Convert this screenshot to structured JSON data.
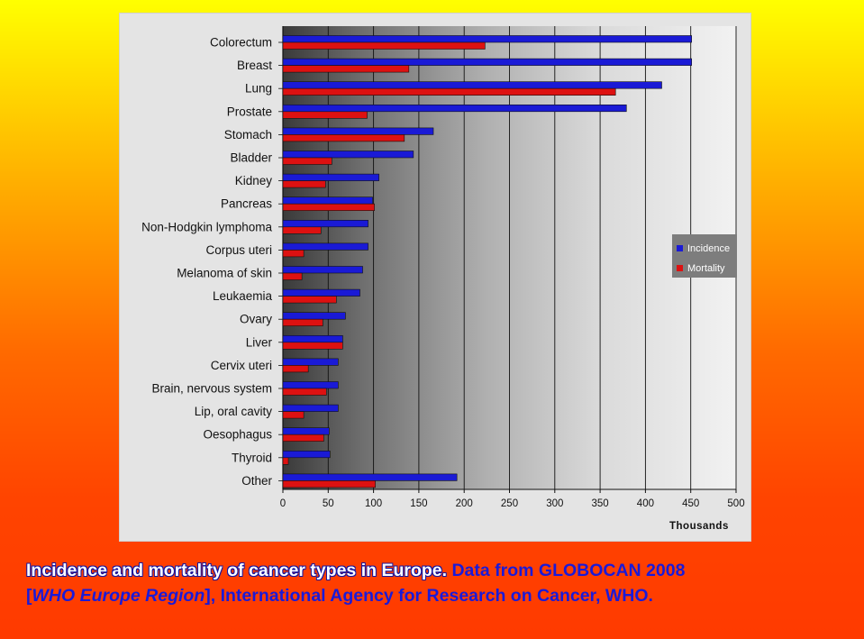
{
  "chart_data": {
    "type": "bar",
    "orientation": "horizontal",
    "categories": [
      "Colorectum",
      "Breast",
      "Lung",
      "Prostate",
      "Stomach",
      "Bladder",
      "Kidney",
      "Pancreas",
      "Non-Hodgkin lymphoma",
      "Corpus uteri",
      "Melanoma of skin",
      "Leukaemia",
      "Ovary",
      "Liver",
      "Cervix uteri",
      "Brain, nervous system",
      "Lip, oral cavity",
      "Oesophagus",
      "Thyroid",
      "Other"
    ],
    "series": [
      {
        "name": "Incidence",
        "color": "#1a1ad6",
        "values": [
          451,
          451,
          418,
          379,
          166,
          144,
          106,
          99,
          94,
          94,
          88,
          85,
          69,
          66,
          61,
          61,
          61,
          51,
          52,
          192
        ]
      },
      {
        "name": "Mortality",
        "color": "#dd1111",
        "values": [
          223,
          139,
          367,
          93,
          134,
          54,
          47,
          101,
          42,
          23,
          21,
          59,
          44,
          66,
          28,
          48,
          23,
          45,
          6,
          102
        ]
      }
    ],
    "xlabel": "Thousands",
    "xlim": [
      0,
      500
    ],
    "xticks": [
      0,
      50,
      100,
      150,
      200,
      250,
      300,
      350,
      400,
      450,
      500
    ],
    "grid": true,
    "legend": "right"
  },
  "caption": {
    "bold": "Incidence and mortality of cancer types in Europe.",
    "part1": " Data from GLOBOCAN 2008",
    "part2": "[",
    "italic": "WHO Europe Region",
    "part3": "], International Agency for Research on Cancer, WHO."
  }
}
